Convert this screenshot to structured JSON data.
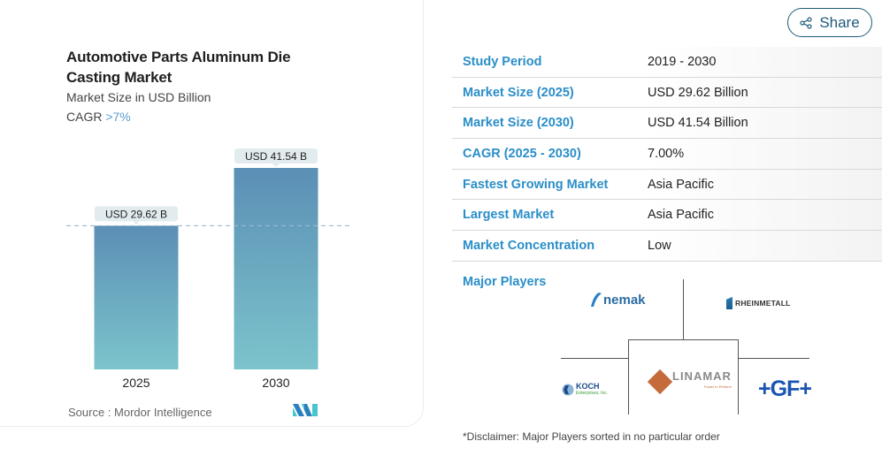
{
  "card": {
    "title": "Automotive Parts Aluminum Die Casting Market",
    "subtitle": "Market Size in USD Billion",
    "cagr_label": "CAGR",
    "cagr_value": ">7%",
    "source": "Source :  Mordor Intelligence",
    "logo": "mordor-intelligence-logo"
  },
  "chart_data": {
    "type": "bar",
    "title": "Automotive Parts Aluminum Die Casting Market",
    "subtitle": "Market Size in USD Billion",
    "categories": [
      "2025",
      "2030"
    ],
    "values": [
      29.62,
      41.54
    ],
    "data_labels": [
      "USD 29.62 B",
      "USD 41.54 B"
    ],
    "xlabel": "",
    "ylabel": "Market Size in USD Billion",
    "ylim": [
      0,
      45
    ],
    "grid": false,
    "reference_line": 29.62,
    "colors": {
      "bar_top": "#5b8fb5",
      "bar_bottom": "#7cc4cc",
      "label_bg": "#e2ecef",
      "ref_line": "#9cbad2"
    }
  },
  "share": {
    "label": "Share",
    "icon": "share-icon"
  },
  "table": {
    "rows": [
      {
        "key": "Study Period",
        "value": "2019 - 2030"
      },
      {
        "key": "Market Size (2025)",
        "value": "USD 29.62 Billion"
      },
      {
        "key": "Market Size (2030)",
        "value": "USD 41.54 Billion"
      },
      {
        "key": "CAGR (2025 - 2030)",
        "value": "7.00%"
      },
      {
        "key": "Fastest Growing Market",
        "value": "Asia Pacific"
      },
      {
        "key": "Largest Market",
        "value": "Asia Pacific"
      },
      {
        "key": "Market Concentration",
        "value": "Low"
      }
    ]
  },
  "players": {
    "label": "Major Players",
    "logos": {
      "nemak": "nemak",
      "rheinmetall": "RHEINMETALL",
      "koch_name": "KOCH",
      "koch_sub": "Enterprises, Inc.",
      "linamar_name": "LINAMAR",
      "linamar_sub": "Power to Perform",
      "gf": "+GF+"
    },
    "disclaimer": "*Disclaimer: Major Players sorted in no particular order"
  },
  "colors": {
    "accent": "#2a8ec8",
    "share_border": "#1e5a7a",
    "cagr": "#5b9fd0"
  }
}
